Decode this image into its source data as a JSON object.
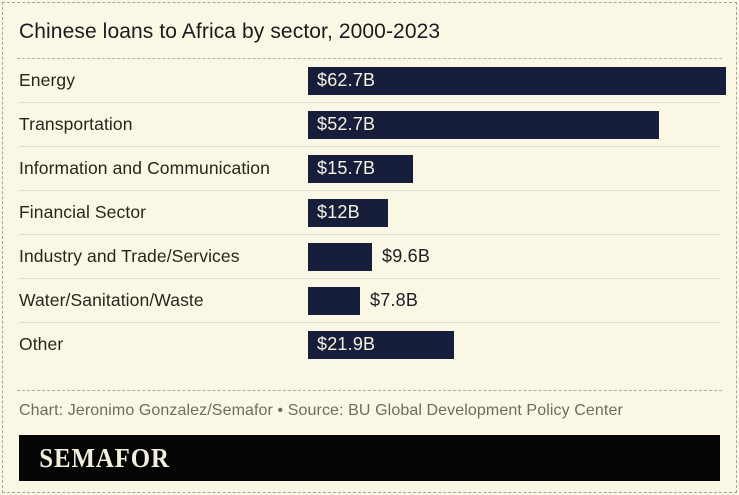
{
  "header": {
    "title": "Chinese loans to Africa by sector, 2000-2023"
  },
  "chart_data": {
    "type": "bar",
    "orientation": "horizontal",
    "title": "Chinese loans to Africa by sector, 2000-2023",
    "categories": [
      "Energy",
      "Transportation",
      "Information and Communication",
      "Financial Sector",
      "Industry and Trade/Services",
      "Water/Sanitation/Waste",
      "Other"
    ],
    "values": [
      62.7,
      52.7,
      15.7,
      12,
      9.6,
      7.8,
      21.9
    ],
    "value_labels": [
      "$62.7B",
      "$52.7B",
      "$15.7B",
      "$12B",
      "$9.6B",
      "$7.8B",
      "$21.9B"
    ],
    "xlim": [
      0,
      62.7
    ],
    "grid": false,
    "legend": "none",
    "bar_color": "#161e3b",
    "value_label_color_inside": "#f6f3e0",
    "value_label_color_outside": "#1d1d22"
  },
  "footer": {
    "credit": "Chart: Jeronimo Gonzalez/Semafor • Source: BU Global Development Policy Center",
    "logo": "SEMAFOR"
  },
  "colors": {
    "background": "#faf7e4",
    "bar": "#161e3b",
    "title_text": "#1b1b1e",
    "label_text": "#26261f",
    "credit_text": "#6e6c61",
    "separator_dashed": "#b5b2a2",
    "separator_dotted": "#c9c6b4",
    "logo_background": "#050505",
    "logo_text": "#f2efdd",
    "frame_border": "#a6a49a"
  }
}
